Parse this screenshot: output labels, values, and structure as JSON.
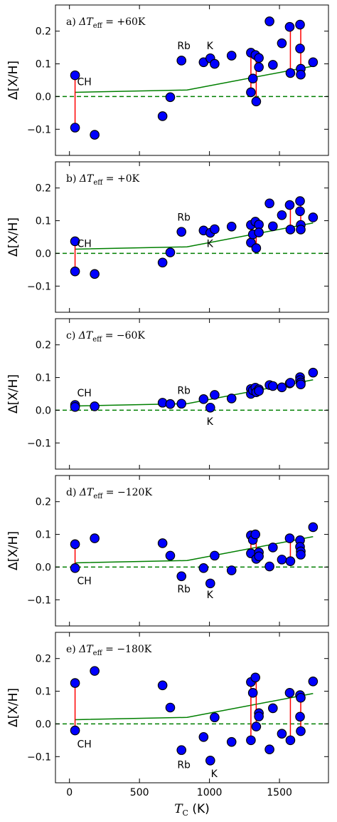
{
  "chart_data": [
    {
      "type": "scatter",
      "title": "a) ΔT_eff = +60K",
      "title_parts": {
        "prefix": "a) ",
        "symbol": "ΔT",
        "subscript": "eff",
        "value": " = +60K"
      },
      "ylabel": "Δ[X/H]",
      "xlim": [
        -100,
        1850
      ],
      "ylim": [
        -0.18,
        0.28
      ],
      "yticks": [
        -0.1,
        0.0,
        0.1,
        0.2
      ],
      "yticklabels": [
        "−0.1",
        "0.0",
        "0.1",
        "0.2"
      ],
      "points": [
        {
          "x": 40,
          "y": 0.065
        },
        {
          "x": 40,
          "y": -0.095
        },
        {
          "x": 180,
          "y": -0.117
        },
        {
          "x": 665,
          "y": -0.06
        },
        {
          "x": 720,
          "y": -0.002
        },
        {
          "x": 800,
          "y": 0.11
        },
        {
          "x": 958,
          "y": 0.105
        },
        {
          "x": 1006,
          "y": 0.117
        },
        {
          "x": 1037,
          "y": 0.1
        },
        {
          "x": 1158,
          "y": 0.125
        },
        {
          "x": 1296,
          "y": 0.134
        },
        {
          "x": 1296,
          "y": 0.013
        },
        {
          "x": 1310,
          "y": 0.055
        },
        {
          "x": 1328,
          "y": 0.127
        },
        {
          "x": 1334,
          "y": -0.015
        },
        {
          "x": 1353,
          "y": 0.118
        },
        {
          "x": 1353,
          "y": 0.09
        },
        {
          "x": 1429,
          "y": 0.23
        },
        {
          "x": 1453,
          "y": 0.097
        },
        {
          "x": 1517,
          "y": 0.163
        },
        {
          "x": 1573,
          "y": 0.213
        },
        {
          "x": 1578,
          "y": 0.072
        },
        {
          "x": 1647,
          "y": 0.22
        },
        {
          "x": 1647,
          "y": 0.147
        },
        {
          "x": 1652,
          "y": 0.085
        },
        {
          "x": 1652,
          "y": 0.067
        },
        {
          "x": 1740,
          "y": 0.105
        }
      ],
      "links": [
        {
          "x": 40,
          "y1": 0.065,
          "y2": -0.095
        },
        {
          "x": 1296,
          "y1": 0.134,
          "y2": 0.013
        },
        {
          "x": 1334,
          "y1": 0.127,
          "y2": -0.015
        },
        {
          "x": 1578,
          "y1": 0.213,
          "y2": 0.072
        },
        {
          "x": 1652,
          "y1": 0.22,
          "y2": 0.067
        }
      ],
      "trend": [
        {
          "x": 40,
          "y": 0.013
        },
        {
          "x": 840,
          "y": 0.02
        },
        {
          "x": 1740,
          "y": 0.093
        }
      ],
      "annotations": [
        {
          "text": "CH",
          "x": 55,
          "y": 0.035
        },
        {
          "text": "Rb",
          "x": 770,
          "y": 0.145
        },
        {
          "text": "K",
          "x": 980,
          "y": 0.145
        }
      ]
    },
    {
      "type": "scatter",
      "title": "b) ΔT_eff = +0K",
      "title_parts": {
        "prefix": "b) ",
        "symbol": "ΔT",
        "subscript": "eff",
        "value": " = +0K"
      },
      "ylabel": "Δ[X/H]",
      "xlim": [
        -100,
        1850
      ],
      "ylim": [
        -0.18,
        0.28
      ],
      "yticks": [
        -0.1,
        0.0,
        0.1,
        0.2
      ],
      "yticklabels": [
        "−0.1",
        "0.0",
        "0.1",
        "0.2"
      ],
      "points": [
        {
          "x": 40,
          "y": 0.037
        },
        {
          "x": 40,
          "y": -0.055
        },
        {
          "x": 180,
          "y": -0.063
        },
        {
          "x": 665,
          "y": -0.028
        },
        {
          "x": 720,
          "y": 0.003
        },
        {
          "x": 800,
          "y": 0.066
        },
        {
          "x": 958,
          "y": 0.07
        },
        {
          "x": 1006,
          "y": 0.063
        },
        {
          "x": 1037,
          "y": 0.074
        },
        {
          "x": 1158,
          "y": 0.082
        },
        {
          "x": 1296,
          "y": 0.087
        },
        {
          "x": 1296,
          "y": 0.033
        },
        {
          "x": 1310,
          "y": 0.058
        },
        {
          "x": 1328,
          "y": 0.097
        },
        {
          "x": 1334,
          "y": 0.016
        },
        {
          "x": 1353,
          "y": 0.088
        },
        {
          "x": 1353,
          "y": 0.064
        },
        {
          "x": 1429,
          "y": 0.153
        },
        {
          "x": 1453,
          "y": 0.083
        },
        {
          "x": 1517,
          "y": 0.117
        },
        {
          "x": 1573,
          "y": 0.148
        },
        {
          "x": 1578,
          "y": 0.073
        },
        {
          "x": 1647,
          "y": 0.16
        },
        {
          "x": 1647,
          "y": 0.129
        },
        {
          "x": 1652,
          "y": 0.087
        },
        {
          "x": 1652,
          "y": 0.073
        },
        {
          "x": 1740,
          "y": 0.11
        }
      ],
      "links": [
        {
          "x": 40,
          "y1": 0.037,
          "y2": -0.055
        },
        {
          "x": 1296,
          "y1": 0.087,
          "y2": 0.033
        },
        {
          "x": 1334,
          "y1": 0.097,
          "y2": 0.016
        },
        {
          "x": 1578,
          "y1": 0.148,
          "y2": 0.073
        },
        {
          "x": 1652,
          "y1": 0.16,
          "y2": 0.073
        }
      ],
      "trend": [
        {
          "x": 40,
          "y": 0.013
        },
        {
          "x": 840,
          "y": 0.02
        },
        {
          "x": 1740,
          "y": 0.093
        }
      ],
      "annotations": [
        {
          "text": "CH",
          "x": 55,
          "y": 0.02
        },
        {
          "text": "Rb",
          "x": 770,
          "y": 0.1
        },
        {
          "text": "K",
          "x": 980,
          "y": 0.02
        }
      ]
    },
    {
      "type": "scatter",
      "title": "c) ΔT_eff = −60K",
      "title_parts": {
        "prefix": "c) ",
        "symbol": "ΔT",
        "subscript": "eff",
        "value": " = −60K"
      },
      "ylabel": "Δ[X/H]",
      "xlim": [
        -100,
        1850
      ],
      "ylim": [
        -0.18,
        0.28
      ],
      "yticks": [
        -0.1,
        0.0,
        0.1,
        0.2
      ],
      "yticklabels": [
        "−0.1",
        "0.0",
        "0.1",
        "0.2"
      ],
      "points": [
        {
          "x": 40,
          "y": 0.016
        },
        {
          "x": 40,
          "y": 0.01
        },
        {
          "x": 180,
          "y": 0.012
        },
        {
          "x": 665,
          "y": 0.023
        },
        {
          "x": 720,
          "y": 0.019
        },
        {
          "x": 800,
          "y": 0.02
        },
        {
          "x": 958,
          "y": 0.034
        },
        {
          "x": 1006,
          "y": 0.008
        },
        {
          "x": 1037,
          "y": 0.047
        },
        {
          "x": 1158,
          "y": 0.036
        },
        {
          "x": 1296,
          "y": 0.065
        },
        {
          "x": 1296,
          "y": 0.05
        },
        {
          "x": 1310,
          "y": 0.061
        },
        {
          "x": 1328,
          "y": 0.069
        },
        {
          "x": 1334,
          "y": 0.055
        },
        {
          "x": 1353,
          "y": 0.064
        },
        {
          "x": 1353,
          "y": 0.059
        },
        {
          "x": 1429,
          "y": 0.077
        },
        {
          "x": 1453,
          "y": 0.074
        },
        {
          "x": 1517,
          "y": 0.07
        },
        {
          "x": 1573,
          "y": 0.082
        },
        {
          "x": 1578,
          "y": 0.084
        },
        {
          "x": 1647,
          "y": 0.101
        },
        {
          "x": 1647,
          "y": 0.092
        },
        {
          "x": 1652,
          "y": 0.085
        },
        {
          "x": 1652,
          "y": 0.079
        },
        {
          "x": 1740,
          "y": 0.115
        }
      ],
      "links": [
        {
          "x": 1296,
          "y1": 0.065,
          "y2": 0.05
        },
        {
          "x": 1334,
          "y1": 0.069,
          "y2": 0.055
        },
        {
          "x": 1578,
          "y1": 0.084,
          "y2": 0.082
        },
        {
          "x": 1652,
          "y1": 0.101,
          "y2": 0.079
        }
      ],
      "trend": [
        {
          "x": 40,
          "y": 0.013
        },
        {
          "x": 840,
          "y": 0.02
        },
        {
          "x": 1740,
          "y": 0.093
        }
      ],
      "annotations": [
        {
          "text": "CH",
          "x": 55,
          "y": 0.042
        },
        {
          "text": "Rb",
          "x": 770,
          "y": 0.05
        },
        {
          "text": "K",
          "x": 980,
          "y": -0.045
        }
      ]
    },
    {
      "type": "scatter",
      "title": "d) ΔT_eff = −120K",
      "title_parts": {
        "prefix": "d) ",
        "symbol": "ΔT",
        "subscript": "eff",
        "value": " = −120K"
      },
      "ylabel": "Δ[X/H]",
      "xlim": [
        -100,
        1850
      ],
      "ylim": [
        -0.18,
        0.28
      ],
      "yticks": [
        -0.1,
        0.0,
        0.1,
        0.2
      ],
      "yticklabels": [
        "−0.1",
        "0.0",
        "0.1",
        "0.2"
      ],
      "points": [
        {
          "x": 40,
          "y": 0.07
        },
        {
          "x": 40,
          "y": -0.003
        },
        {
          "x": 180,
          "y": 0.088
        },
        {
          "x": 665,
          "y": 0.073
        },
        {
          "x": 720,
          "y": 0.035
        },
        {
          "x": 800,
          "y": -0.028
        },
        {
          "x": 958,
          "y": -0.003
        },
        {
          "x": 1006,
          "y": -0.05
        },
        {
          "x": 1037,
          "y": 0.035
        },
        {
          "x": 1158,
          "y": -0.01
        },
        {
          "x": 1296,
          "y": 0.097
        },
        {
          "x": 1296,
          "y": 0.042
        },
        {
          "x": 1310,
          "y": 0.083
        },
        {
          "x": 1328,
          "y": 0.1
        },
        {
          "x": 1334,
          "y": 0.025
        },
        {
          "x": 1353,
          "y": 0.045
        },
        {
          "x": 1353,
          "y": 0.033
        },
        {
          "x": 1429,
          "y": 0.002
        },
        {
          "x": 1453,
          "y": 0.06
        },
        {
          "x": 1517,
          "y": 0.023
        },
        {
          "x": 1573,
          "y": 0.088
        },
        {
          "x": 1578,
          "y": 0.018
        },
        {
          "x": 1647,
          "y": 0.082
        },
        {
          "x": 1647,
          "y": 0.062
        },
        {
          "x": 1652,
          "y": 0.048
        },
        {
          "x": 1652,
          "y": 0.038
        },
        {
          "x": 1740,
          "y": 0.122
        }
      ],
      "links": [
        {
          "x": 40,
          "y1": 0.07,
          "y2": -0.003
        },
        {
          "x": 1296,
          "y1": 0.097,
          "y2": 0.042
        },
        {
          "x": 1334,
          "y1": 0.1,
          "y2": 0.025
        },
        {
          "x": 1578,
          "y1": 0.088,
          "y2": 0.018
        },
        {
          "x": 1652,
          "y1": 0.082,
          "y2": 0.038
        }
      ],
      "trend": [
        {
          "x": 40,
          "y": 0.013
        },
        {
          "x": 840,
          "y": 0.02
        },
        {
          "x": 1740,
          "y": 0.093
        }
      ],
      "annotations": [
        {
          "text": "CH",
          "x": 55,
          "y": -0.052
        },
        {
          "text": "Rb",
          "x": 770,
          "y": -0.078
        },
        {
          "text": "K",
          "x": 980,
          "y": -0.095
        }
      ]
    },
    {
      "type": "scatter",
      "title": "e) ΔT_eff = −180K",
      "title_parts": {
        "prefix": "e) ",
        "symbol": "ΔT",
        "subscript": "eff",
        "value": " = −180K"
      },
      "ylabel": "Δ[X/H]",
      "xlabel": "T_C (K)",
      "xlabel_parts": {
        "symbol": "T",
        "subscript": "C",
        "unit": " (K)"
      },
      "xlim": [
        -100,
        1850
      ],
      "ylim": [
        -0.18,
        0.28
      ],
      "xticks": [
        0,
        500,
        1000,
        1500
      ],
      "xticklabels": [
        "0",
        "500",
        "1000",
        "1500"
      ],
      "yticks": [
        -0.1,
        0.0,
        0.1,
        0.2
      ],
      "yticklabels": [
        "−0.1",
        "0.0",
        "0.1",
        "0.2"
      ],
      "points": [
        {
          "x": 40,
          "y": 0.125
        },
        {
          "x": 40,
          "y": -0.02
        },
        {
          "x": 180,
          "y": 0.162
        },
        {
          "x": 665,
          "y": 0.118
        },
        {
          "x": 720,
          "y": 0.05
        },
        {
          "x": 800,
          "y": -0.08
        },
        {
          "x": 958,
          "y": -0.04
        },
        {
          "x": 1006,
          "y": -0.112
        },
        {
          "x": 1037,
          "y": 0.02
        },
        {
          "x": 1158,
          "y": -0.055
        },
        {
          "x": 1296,
          "y": 0.128
        },
        {
          "x": 1296,
          "y": -0.05
        },
        {
          "x": 1310,
          "y": 0.095
        },
        {
          "x": 1328,
          "y": 0.142
        },
        {
          "x": 1334,
          "y": -0.008
        },
        {
          "x": 1353,
          "y": 0.033
        },
        {
          "x": 1353,
          "y": 0.023
        },
        {
          "x": 1429,
          "y": -0.078
        },
        {
          "x": 1453,
          "y": 0.048
        },
        {
          "x": 1517,
          "y": -0.03
        },
        {
          "x": 1573,
          "y": 0.095
        },
        {
          "x": 1578,
          "y": -0.05
        },
        {
          "x": 1647,
          "y": 0.088
        },
        {
          "x": 1647,
          "y": 0.022
        },
        {
          "x": 1652,
          "y": 0.08
        },
        {
          "x": 1652,
          "y": -0.022
        },
        {
          "x": 1740,
          "y": 0.13
        }
      ],
      "links": [
        {
          "x": 40,
          "y1": 0.125,
          "y2": -0.02
        },
        {
          "x": 1296,
          "y1": 0.128,
          "y2": -0.05
        },
        {
          "x": 1334,
          "y1": 0.142,
          "y2": -0.008
        },
        {
          "x": 1578,
          "y1": 0.095,
          "y2": -0.05
        },
        {
          "x": 1652,
          "y1": 0.088,
          "y2": -0.022
        }
      ],
      "trend": [
        {
          "x": 40,
          "y": 0.013
        },
        {
          "x": 840,
          "y": 0.02
        },
        {
          "x": 1740,
          "y": 0.093
        }
      ],
      "annotations": [
        {
          "text": "CH",
          "x": 55,
          "y": -0.072
        },
        {
          "text": "Rb",
          "x": 770,
          "y": -0.135
        },
        {
          "text": "K",
          "x": 1010,
          "y": -0.163
        }
      ]
    }
  ],
  "colors": {
    "marker_fill": "#0000ff",
    "marker_edge": "#000000",
    "link": "#ff0000",
    "trend": "#007f00",
    "zero_line": "#007f00"
  }
}
